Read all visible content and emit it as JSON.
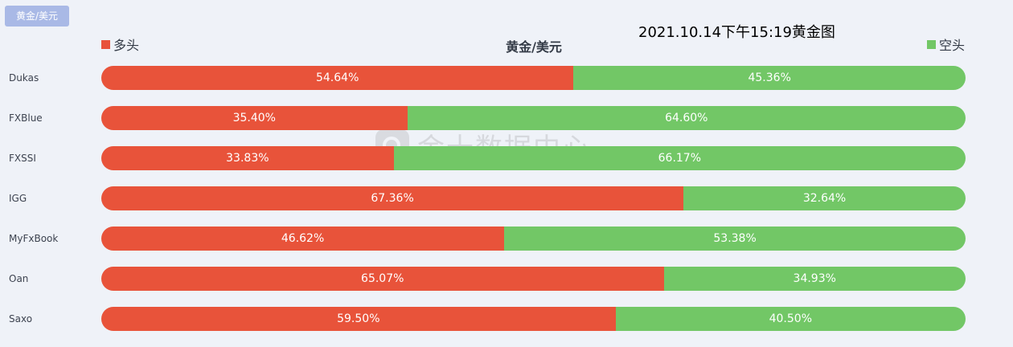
{
  "header": {
    "tag_label": "黄金/美元",
    "timestamp": "2021.10.14下午15:19黄金图"
  },
  "watermark": {
    "text": "金十数据中心",
    "icon": "jin10-logo-icon"
  },
  "chart_data": {
    "type": "bar",
    "stacked": true,
    "orientation": "horizontal",
    "title": "黄金/美元",
    "legend_position": "top",
    "categories": [
      "Dukas",
      "FXBlue",
      "FXSSI",
      "IGG",
      "MyFxBook",
      "Oan",
      "Saxo"
    ],
    "series": [
      {
        "name": "多头",
        "color": "#e8533a",
        "values": [
          54.64,
          35.4,
          33.83,
          67.36,
          46.62,
          65.07,
          59.5
        ],
        "labels": [
          "54.64%",
          "35.40%",
          "33.83%",
          "67.36%",
          "46.62%",
          "65.07%",
          "59.50%"
        ]
      },
      {
        "name": "空头",
        "color": "#72c766",
        "values": [
          45.36,
          64.6,
          66.17,
          32.64,
          53.38,
          34.93,
          40.5
        ],
        "labels": [
          "45.36%",
          "64.60%",
          "66.17%",
          "32.64%",
          "53.38%",
          "34.93%",
          "40.50%"
        ]
      }
    ],
    "xlim": [
      0,
      100
    ]
  }
}
